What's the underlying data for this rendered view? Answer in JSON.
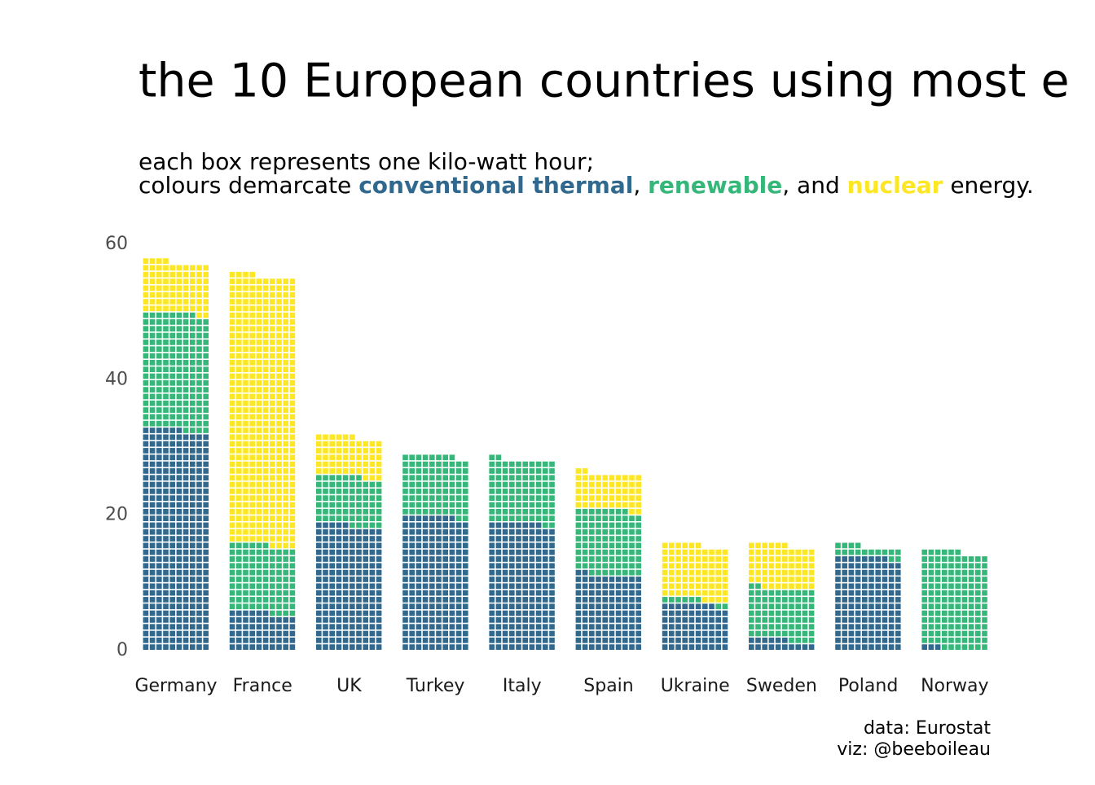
{
  "chart_data": {
    "type": "waffle",
    "title": "the 10 European countries using most e",
    "subtitle_line1": "each box represents one kilo-watt hour;",
    "subtitle_prefix": "colours demarcate",
    "subtitle_and": ", and",
    "subtitle_suffix": "energy.",
    "caption_line1": "data: Eurostat",
    "caption_line2": "viz: @beeboileau",
    "categories": [
      "Germany",
      "France",
      "UK",
      "Turkey",
      "Italy",
      "Spain",
      "Ukraine",
      "Sweden",
      "Poland",
      "Norway"
    ],
    "series": [
      {
        "name": "conventional thermal",
        "color": "#31688e",
        "values": [
          32.6,
          5.6,
          18.5,
          19.8,
          18.8,
          11.2,
          6.8,
          1.6,
          13.8,
          0.3
        ]
      },
      {
        "name": "renewable",
        "color": "#35b779",
        "values": [
          17.2,
          10.0,
          7.2,
          9.0,
          9.4,
          9.6,
          0.8,
          7.6,
          1.6,
          14.3
        ]
      },
      {
        "name": "nuclear",
        "color": "#fde725",
        "values": [
          7.6,
          39.8,
          5.9,
          0,
          0,
          5.4,
          8.0,
          6.4,
          0,
          0
        ]
      }
    ],
    "ylim": [
      0,
      60
    ],
    "yticks": [
      0,
      20,
      40,
      60
    ],
    "grid": false,
    "boxes_per_row": 10
  }
}
